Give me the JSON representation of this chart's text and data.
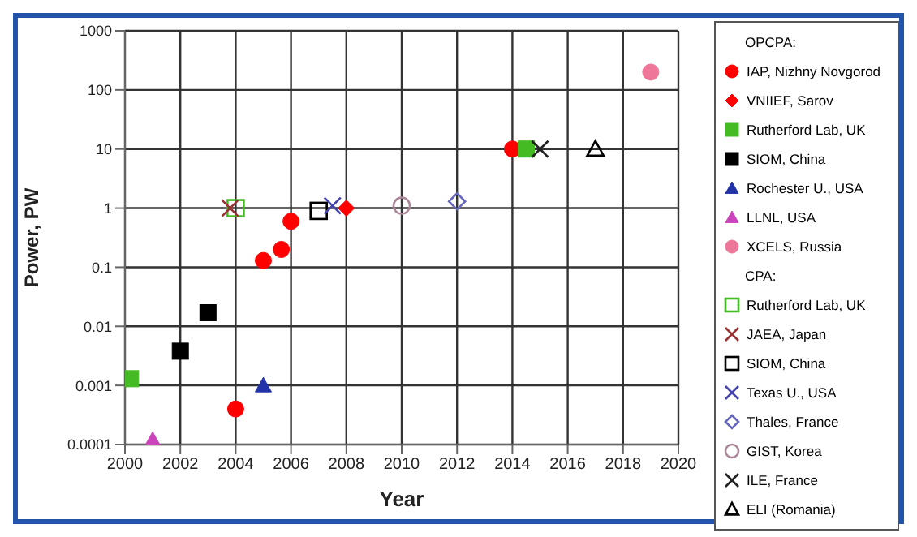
{
  "chart_data": {
    "type": "scatter",
    "xlabel": "Year",
    "ylabel": "Power, PW",
    "log": "y",
    "grid": true,
    "legend": "right",
    "legend_title": "OPCPA:",
    "annotations": [
      "CPA:"
    ],
    "xlim": [
      2000,
      2020
    ],
    "xticks": [
      2000,
      2002,
      2004,
      2006,
      2008,
      2010,
      2012,
      2014,
      2016,
      2018,
      2020
    ],
    "ylim": [
      0.0001,
      1000
    ],
    "yticks": [
      0.0001,
      0.001,
      0.01,
      0.1,
      1,
      10,
      100,
      1000
    ],
    "series": [
      {
        "name": "IAP, Nizhny Novgorod",
        "color": "#ff0000",
        "marker": "circle",
        "x": [
          2004,
          2005,
          2005.65,
          2006,
          2014
        ],
        "values": [
          0.0004,
          0.13,
          0.2,
          0.6,
          10
        ]
      },
      {
        "name": "VNIIEF, Sarov",
        "color": "#ff0000",
        "marker": "diamond",
        "x": [
          2008
        ],
        "values": [
          1
        ]
      },
      {
        "name": "Rutherford Lab, UK",
        "color": "#44bb22",
        "marker": "square",
        "x": [
          2000.2,
          2014.5
        ],
        "values": [
          0.0013,
          10
        ]
      },
      {
        "name": "SIOM, China",
        "color": "#000000",
        "marker": "square",
        "x": [
          2002,
          2003
        ],
        "values": [
          0.0038,
          0.017
        ]
      },
      {
        "name": "Rochester U., USA",
        "color": "#2233aa",
        "marker": "triangle",
        "x": [
          2005
        ],
        "values": [
          0.001
        ]
      },
      {
        "name": "LLNL, USA",
        "color": "#cc44bb",
        "marker": "triangle",
        "x": [
          2001
        ],
        "values": [
          0.00012
        ]
      },
      {
        "name": "XCELS, Russia",
        "color": "#ee7799",
        "marker": "circle",
        "x": [
          2019
        ],
        "values": [
          200
        ]
      },
      {
        "name": "Rutherford Lab, UK",
        "color": "#44bb22",
        "marker": "square",
        "x": [
          2004
        ],
        "values": [
          1
        ]
      },
      {
        "name": "JAEA, Japan",
        "color": "#993333",
        "marker": "cross",
        "x": [
          2003.8
        ],
        "values": [
          1
        ]
      },
      {
        "name": "SIOM, China",
        "color": "#000000",
        "marker": "square",
        "x": [
          2007
        ],
        "values": [
          0.9
        ]
      },
      {
        "name": "Texas U., USA",
        "color": "#4444aa",
        "marker": "cross",
        "x": [
          2007.5
        ],
        "values": [
          1.1
        ]
      },
      {
        "name": "Thales, France",
        "color": "#6666bb",
        "marker": "diamond",
        "x": [
          2012
        ],
        "values": [
          1.3
        ]
      },
      {
        "name": "GIST, Korea",
        "color": "#aa8899",
        "marker": "circle",
        "x": [
          2010
        ],
        "values": [
          1.1
        ]
      },
      {
        "name": "ILE, France",
        "color": "#222222",
        "marker": "cross",
        "x": [
          2015
        ],
        "values": [
          10
        ]
      },
      {
        "name": "ELI (Romania)",
        "color": "#000000",
        "marker": "triangle",
        "x": [
          2017
        ],
        "values": [
          10
        ]
      }
    ]
  }
}
